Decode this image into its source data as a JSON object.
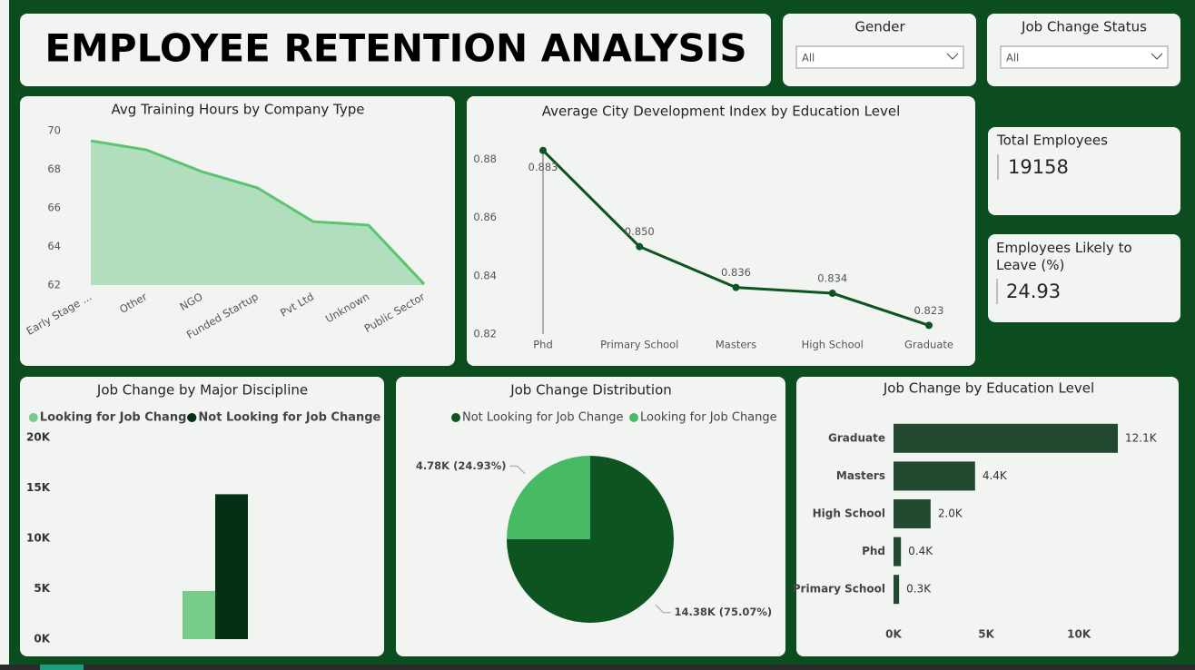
{
  "header": {
    "title": "EMPLOYEE RETENTION ANALYSIS"
  },
  "slicers": [
    {
      "label": "Gender",
      "value": "All"
    },
    {
      "label": "Job Change Status",
      "value": "All"
    }
  ],
  "cards": [
    {
      "label": "Total Employees",
      "value": 19158
    },
    {
      "label": "Employees Likely to Leave (%)",
      "value": 24.93
    }
  ],
  "chart_data": [
    {
      "type": "area",
      "title": "Avg Training Hours by Company Type",
      "categories": [
        "Early Stage ...",
        "Other",
        "NGO",
        "Funded Startup",
        "Pvt Ltd",
        "Unknown",
        "Public Sector"
      ],
      "values": [
        69.48,
        69.01,
        67.88,
        67.04,
        65.29,
        65.11,
        62.05
      ],
      "color": "#5cc46f",
      "fill": "#b1dfbd",
      "ylim": [
        62,
        70
      ],
      "yticks": [
        62,
        64,
        66,
        68,
        70
      ]
    },
    {
      "type": "line",
      "title": "Average City Development Index by Education Level",
      "categories": [
        "Phd",
        "Primary School",
        "Masters",
        "High School",
        "Graduate"
      ],
      "values": [
        0.883,
        0.85,
        0.836,
        0.834,
        0.823
      ],
      "value_labels": [
        "0.883",
        "0.850",
        "0.836",
        "0.834",
        "0.823"
      ],
      "color": "#0d5420",
      "ylim": [
        0.82,
        0.891
      ],
      "yticks": [
        0.82,
        0.84,
        0.86,
        0.88
      ]
    },
    {
      "type": "grouped-bar",
      "title": "Job Change by Major Discipline",
      "categories": [
        null
      ],
      "series": [
        {
          "name": "Looking for Job Change",
          "color": "#77cc8c",
          "values": [
            4780
          ]
        },
        {
          "name": "Not Looking for Job Change",
          "color": "#063015",
          "values": [
            14380
          ]
        }
      ],
      "ylim": [
        0,
        20000
      ],
      "yticks": [
        {
          "value": 0,
          "label": "0K"
        },
        {
          "value": 5000,
          "label": "5K"
        },
        {
          "value": 10000,
          "label": "10K"
        },
        {
          "value": 15000,
          "label": "15K"
        },
        {
          "value": 20000,
          "label": "20K"
        }
      ]
    },
    {
      "type": "pie",
      "title": "Job Change Distribution",
      "categories": [
        "Not Looking for Job Change",
        "Looking for Job Change"
      ],
      "values": [
        14380,
        4780
      ],
      "value_labels": [
        "14.38K (75.07%)",
        "4.78K (24.93%)"
      ],
      "colors": [
        "#0d5420",
        "#48b965"
      ]
    },
    {
      "type": "hbar",
      "title": "Job Change by Education Level",
      "categories": [
        "Graduate",
        "Masters",
        "High School",
        "Phd",
        "Primary School"
      ],
      "values": [
        12100,
        4400,
        2000,
        400,
        300
      ],
      "value_labels": [
        "12.1K",
        "4.4K",
        "2.0K",
        "0.4K",
        "0.3K"
      ],
      "color": "#234a30",
      "xlim": [
        0,
        14500
      ],
      "xticks": [
        {
          "value": 0,
          "label": "0K"
        },
        {
          "value": 5000,
          "label": "5K"
        },
        {
          "value": 10000,
          "label": "10K"
        }
      ]
    }
  ]
}
